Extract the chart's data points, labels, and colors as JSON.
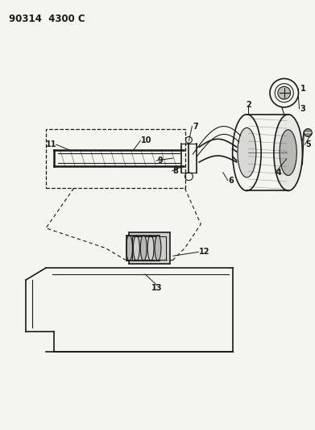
{
  "title": "90314  4300 C",
  "bg_color": "#f5f5f0",
  "line_color": "#1a1a1a",
  "title_fontsize": 8.5,
  "label_fontsize": 7,
  "figsize": [
    3.91,
    5.33
  ],
  "dpi": 100
}
